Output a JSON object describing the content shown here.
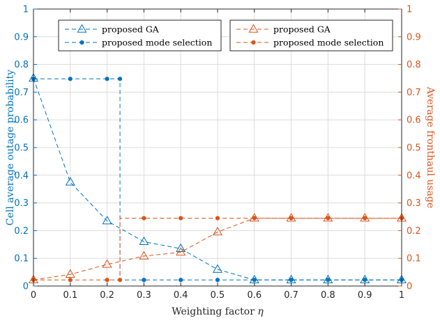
{
  "chart_data": {
    "type": "line",
    "xlabel": "Weighting factor",
    "xlabel_symbol": "η",
    "ylabel_left": "Cell average outage probability",
    "ylabel_right": "Average fronthaul usage",
    "xlim": [
      0,
      1
    ],
    "ylim_left": [
      0,
      1
    ],
    "ylim_right": [
      0,
      1
    ],
    "x_ticks": [
      "0",
      "0.1",
      "0.2",
      "0.3",
      "0.4",
      "0.5",
      "0.6",
      "0.7",
      "0.8",
      "0.9",
      "1"
    ],
    "y_ticks": [
      "0",
      "0.1",
      "0.2",
      "0.3",
      "0.4",
      "0.5",
      "0.6",
      "0.7",
      "0.8",
      "0.9",
      "1"
    ],
    "grid": true,
    "colors": {
      "left": "#0072BD",
      "right": "#D95319"
    },
    "series": [
      {
        "name": "proposed GA",
        "axis": "left",
        "marker": "triangle",
        "x": [
          0,
          0.1,
          0.2,
          0.3,
          0.4,
          0.5,
          0.6,
          0.7,
          0.8,
          0.9,
          1
        ],
        "y": [
          0.75,
          0.375,
          0.235,
          0.16,
          0.135,
          0.06,
          0.022,
          0.022,
          0.022,
          0.022,
          0.022
        ]
      },
      {
        "name": "proposed mode selection",
        "axis": "left",
        "marker": "dot",
        "step": true,
        "x": [
          0,
          0.1,
          0.2,
          0.235,
          0.235,
          0.3,
          0.4,
          0.5,
          0.6,
          0.7,
          0.8,
          0.9,
          1
        ],
        "y": [
          0.748,
          0.748,
          0.748,
          0.748,
          0.022,
          0.022,
          0.022,
          0.022,
          0.022,
          0.022,
          0.022,
          0.022,
          0.022
        ],
        "marker_x": [
          0,
          0.1,
          0.2,
          0.235,
          0.3,
          0.4,
          0.5,
          0.6,
          0.7,
          0.8,
          0.9,
          1
        ],
        "marker_y": [
          0.748,
          0.748,
          0.748,
          0.748,
          0.022,
          0.022,
          0.022,
          0.022,
          0.022,
          0.022,
          0.022,
          0.022
        ]
      },
      {
        "name": "proposed GA",
        "axis": "right",
        "marker": "triangle",
        "x": [
          0,
          0.1,
          0.2,
          0.3,
          0.4,
          0.5,
          0.6,
          0.7,
          0.8,
          0.9,
          1
        ],
        "y": [
          0.022,
          0.042,
          0.078,
          0.108,
          0.122,
          0.195,
          0.245,
          0.245,
          0.245,
          0.245,
          0.245
        ]
      },
      {
        "name": "proposed mode selection",
        "axis": "right",
        "marker": "dot",
        "step": true,
        "x": [
          0,
          0.1,
          0.2,
          0.235,
          0.235,
          0.3,
          0.4,
          0.5,
          0.6,
          0.7,
          0.8,
          0.9,
          1
        ],
        "y": [
          0.022,
          0.022,
          0.022,
          0.022,
          0.245,
          0.245,
          0.245,
          0.245,
          0.245,
          0.245,
          0.245,
          0.245,
          0.245
        ],
        "marker_x": [
          0,
          0.1,
          0.2,
          0.235,
          0.3,
          0.4,
          0.5,
          0.6,
          0.7,
          0.8,
          0.9,
          1
        ],
        "marker_y": [
          0.022,
          0.022,
          0.022,
          0.022,
          0.245,
          0.245,
          0.245,
          0.245,
          0.245,
          0.245,
          0.245,
          0.245
        ]
      }
    ],
    "legends": [
      {
        "placement": "top-left",
        "entries": [
          0,
          1
        ]
      },
      {
        "placement": "top-right",
        "entries": [
          2,
          3
        ]
      }
    ]
  }
}
